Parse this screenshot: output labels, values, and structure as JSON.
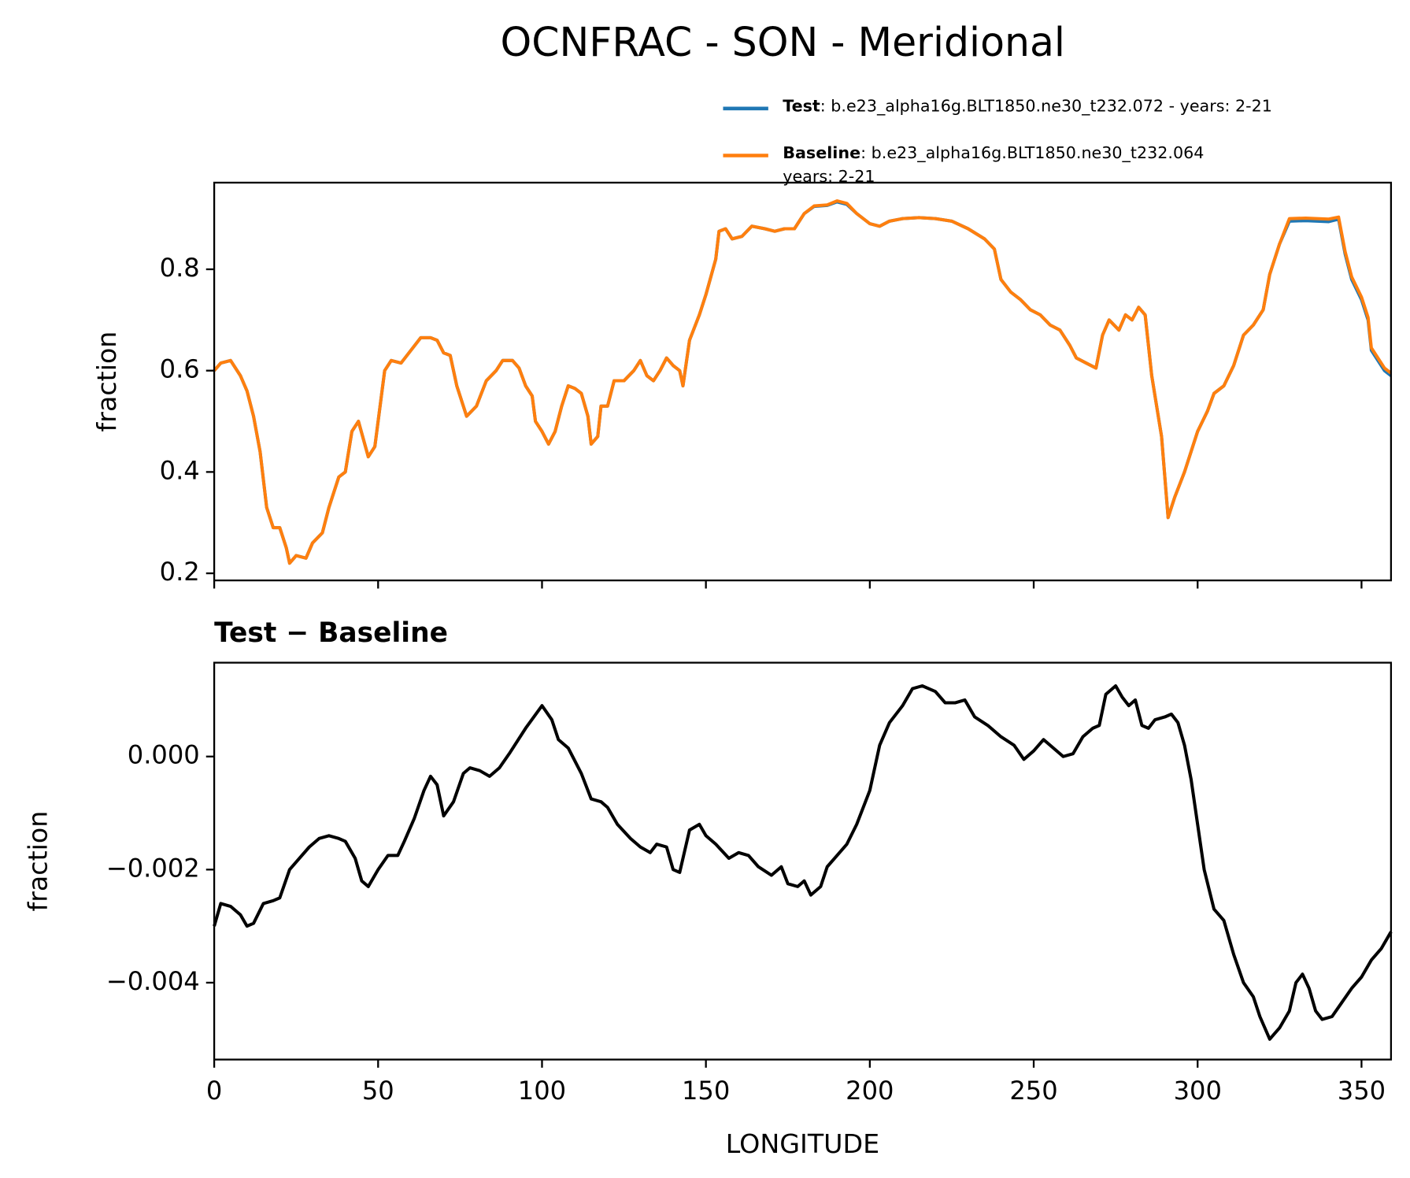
{
  "title": "OCNFRAC - SON - Meridional",
  "chart_data": [
    {
      "type": "line",
      "ylabel": "fraction",
      "x": [
        0,
        2,
        5,
        8,
        10,
        12,
        14,
        16,
        18,
        20,
        22,
        23,
        25,
        28,
        30,
        33,
        35,
        38,
        40,
        42,
        44,
        47,
        49,
        52,
        54,
        57,
        60,
        63,
        66,
        68,
        70,
        72,
        74,
        77,
        80,
        83,
        86,
        88,
        91,
        93,
        95,
        97,
        98,
        100,
        102,
        104,
        106,
        108,
        110,
        112,
        114,
        115,
        117,
        118,
        120,
        122,
        125,
        128,
        130,
        132,
        134,
        136,
        138,
        140,
        142,
        143,
        145,
        148,
        150,
        153,
        154,
        156,
        158,
        161,
        164,
        168,
        171,
        174,
        177,
        180,
        183,
        187,
        190,
        193,
        196,
        200,
        203,
        206,
        210,
        215,
        220,
        225,
        230,
        235,
        238,
        240,
        243,
        246,
        249,
        252,
        255,
        258,
        261,
        263,
        266,
        269,
        271,
        273,
        276,
        278,
        280,
        282,
        284,
        286,
        289,
        291,
        293,
        296,
        300,
        303,
        305,
        308,
        311,
        314,
        317,
        320,
        322,
        325,
        328,
        333,
        340,
        343,
        345,
        347,
        350,
        352,
        353,
        355,
        357,
        359
      ],
      "series": [
        {
          "name": "Test",
          "description": ": b.e23_alpha16g.BLT1850.ne30_t232.072 - years: 2-21",
          "color": "#1f77b4",
          "values": [
            0.6,
            0.615,
            0.62,
            0.59,
            0.56,
            0.51,
            0.44,
            0.33,
            0.29,
            0.29,
            0.25,
            0.22,
            0.235,
            0.23,
            0.26,
            0.28,
            0.33,
            0.39,
            0.4,
            0.48,
            0.5,
            0.43,
            0.45,
            0.6,
            0.62,
            0.615,
            0.64,
            0.665,
            0.665,
            0.66,
            0.635,
            0.63,
            0.57,
            0.51,
            0.53,
            0.58,
            0.6,
            0.62,
            0.62,
            0.605,
            0.57,
            0.55,
            0.5,
            0.48,
            0.455,
            0.48,
            0.53,
            0.57,
            0.565,
            0.555,
            0.51,
            0.455,
            0.47,
            0.53,
            0.53,
            0.58,
            0.58,
            0.6,
            0.62,
            0.59,
            0.58,
            0.6,
            0.625,
            0.61,
            0.6,
            0.57,
            0.66,
            0.71,
            0.75,
            0.82,
            0.875,
            0.88,
            0.86,
            0.865,
            0.885,
            0.88,
            0.875,
            0.88,
            0.88,
            0.91,
            0.924,
            0.926,
            0.933,
            0.928,
            0.91,
            0.89,
            0.885,
            0.895,
            0.9,
            0.902,
            0.9,
            0.895,
            0.88,
            0.86,
            0.84,
            0.78,
            0.755,
            0.74,
            0.72,
            0.71,
            0.69,
            0.68,
            0.65,
            0.625,
            0.615,
            0.605,
            0.67,
            0.7,
            0.68,
            0.71,
            0.7,
            0.725,
            0.71,
            0.59,
            0.47,
            0.31,
            0.35,
            0.4,
            0.48,
            0.52,
            0.555,
            0.57,
            0.61,
            0.67,
            0.69,
            0.72,
            0.79,
            0.85,
            0.895,
            0.896,
            0.894,
            0.899,
            0.83,
            0.78,
            0.74,
            0.7,
            0.64,
            0.62,
            0.6,
            0.59
          ]
        },
        {
          "name": "Baseline",
          "description": ": b.e23_alpha16g.BLT1850.ne30_t232.064",
          "description2": "years: 2-21",
          "color": "#ff7f0e",
          "values": [
            0.6,
            0.615,
            0.62,
            0.59,
            0.56,
            0.51,
            0.44,
            0.33,
            0.29,
            0.29,
            0.25,
            0.22,
            0.235,
            0.23,
            0.26,
            0.28,
            0.33,
            0.39,
            0.4,
            0.48,
            0.5,
            0.43,
            0.45,
            0.6,
            0.62,
            0.615,
            0.64,
            0.665,
            0.665,
            0.66,
            0.635,
            0.63,
            0.57,
            0.51,
            0.53,
            0.58,
            0.6,
            0.62,
            0.62,
            0.605,
            0.57,
            0.55,
            0.5,
            0.48,
            0.455,
            0.48,
            0.53,
            0.57,
            0.565,
            0.555,
            0.51,
            0.455,
            0.47,
            0.53,
            0.53,
            0.58,
            0.58,
            0.6,
            0.62,
            0.59,
            0.58,
            0.6,
            0.625,
            0.61,
            0.6,
            0.57,
            0.66,
            0.71,
            0.75,
            0.82,
            0.875,
            0.88,
            0.86,
            0.865,
            0.885,
            0.88,
            0.875,
            0.88,
            0.88,
            0.91,
            0.925,
            0.927,
            0.935,
            0.93,
            0.91,
            0.89,
            0.885,
            0.895,
            0.9,
            0.902,
            0.9,
            0.895,
            0.88,
            0.86,
            0.84,
            0.78,
            0.755,
            0.74,
            0.72,
            0.71,
            0.69,
            0.68,
            0.65,
            0.625,
            0.615,
            0.605,
            0.67,
            0.7,
            0.68,
            0.71,
            0.7,
            0.725,
            0.71,
            0.59,
            0.47,
            0.31,
            0.35,
            0.4,
            0.48,
            0.52,
            0.555,
            0.57,
            0.61,
            0.67,
            0.69,
            0.72,
            0.79,
            0.85,
            0.9,
            0.901,
            0.899,
            0.903,
            0.835,
            0.785,
            0.745,
            0.705,
            0.645,
            0.625,
            0.605,
            0.595
          ]
        }
      ],
      "xlim": [
        0,
        359
      ],
      "xticks": [
        0,
        50,
        100,
        150,
        200,
        250,
        300,
        350
      ],
      "ylim": [
        0.186,
        0.971
      ],
      "yticks": [
        0.2,
        0.4,
        0.6,
        0.8
      ]
    },
    {
      "type": "line",
      "title": "Test − Baseline",
      "xlabel": "LONGITUDE",
      "ylabel": "fraction",
      "x": [
        0,
        2,
        5,
        8,
        10,
        12,
        15,
        18,
        20,
        23,
        26,
        29,
        32,
        35,
        38,
        40,
        43,
        45,
        47,
        50,
        53,
        56,
        58,
        61,
        64,
        66,
        68,
        70,
        73,
        76,
        78,
        81,
        84,
        87,
        90,
        95,
        100,
        103,
        105,
        108,
        112,
        115,
        118,
        120,
        123,
        127,
        130,
        133,
        135,
        138,
        140,
        142,
        145,
        148,
        150,
        153,
        157,
        160,
        163,
        166,
        170,
        173,
        175,
        178,
        180,
        182,
        185,
        187,
        190,
        193,
        196,
        200,
        203,
        206,
        210,
        213,
        216,
        220,
        223,
        226,
        229,
        232,
        236,
        240,
        244,
        247,
        250,
        253,
        256,
        259,
        262,
        265,
        268,
        270,
        272,
        275,
        277,
        279,
        281,
        283,
        285,
        287,
        290,
        292,
        294,
        296,
        298,
        300,
        302,
        305,
        308,
        311,
        314,
        317,
        319,
        322,
        325,
        328,
        330,
        332,
        334,
        336,
        338,
        341,
        344,
        347,
        350,
        353,
        356,
        359
      ],
      "series": [
        {
          "name": "Test − Baseline",
          "color": "#000000",
          "values": [
            -0.003,
            -0.0026,
            -0.00265,
            -0.0028,
            -0.003,
            -0.00295,
            -0.0026,
            -0.00255,
            -0.0025,
            -0.002,
            -0.0018,
            -0.0016,
            -0.00145,
            -0.0014,
            -0.00145,
            -0.0015,
            -0.0018,
            -0.0022,
            -0.0023,
            -0.002,
            -0.00175,
            -0.00175,
            -0.0015,
            -0.0011,
            -0.0006,
            -0.00035,
            -0.0005,
            -0.00105,
            -0.0008,
            -0.0003,
            -0.0002,
            -0.00025,
            -0.00035,
            -0.0002,
            5e-05,
            0.0005,
            0.0009,
            0.00065,
            0.0003,
            0.00015,
            -0.0003,
            -0.00075,
            -0.0008,
            -0.0009,
            -0.0012,
            -0.00145,
            -0.0016,
            -0.0017,
            -0.00155,
            -0.0016,
            -0.002,
            -0.00205,
            -0.0013,
            -0.0012,
            -0.0014,
            -0.00155,
            -0.0018,
            -0.0017,
            -0.00175,
            -0.00195,
            -0.0021,
            -0.00195,
            -0.00225,
            -0.0023,
            -0.0022,
            -0.00245,
            -0.0023,
            -0.00195,
            -0.00175,
            -0.00155,
            -0.0012,
            -0.0006,
            0.0002,
            0.0006,
            0.0009,
            0.0012,
            0.00125,
            0.00115,
            0.00095,
            0.00095,
            0.001,
            0.0007,
            0.00055,
            0.00035,
            0.0002,
            -5e-05,
            0.0001,
            0.0003,
            0.00015,
            0,
            5e-05,
            0.00035,
            0.0005,
            0.00055,
            0.0011,
            0.00125,
            0.00105,
            0.0009,
            0.001,
            0.00055,
            0.0005,
            0.00065,
            0.0007,
            0.00075,
            0.0006,
            0.0002,
            -0.0004,
            -0.0012,
            -0.002,
            -0.0027,
            -0.0029,
            -0.0035,
            -0.004,
            -0.00425,
            -0.0046,
            -0.005,
            -0.0048,
            -0.0045,
            -0.004,
            -0.00385,
            -0.0041,
            -0.0045,
            -0.00465,
            -0.0046,
            -0.00435,
            -0.0041,
            -0.0039,
            -0.0036,
            -0.0034,
            -0.0031
          ]
        }
      ],
      "xlim": [
        0,
        359
      ],
      "xticks": [
        0,
        50,
        100,
        150,
        200,
        250,
        300,
        350
      ],
      "ylim": [
        -0.00536,
        0.00166
      ],
      "yticks": [
        {
          "value": 0,
          "label": "0.000"
        },
        {
          "value": -0.002,
          "label": "−0.002"
        },
        {
          "value": -0.004,
          "label": "−0.004"
        }
      ]
    }
  ]
}
